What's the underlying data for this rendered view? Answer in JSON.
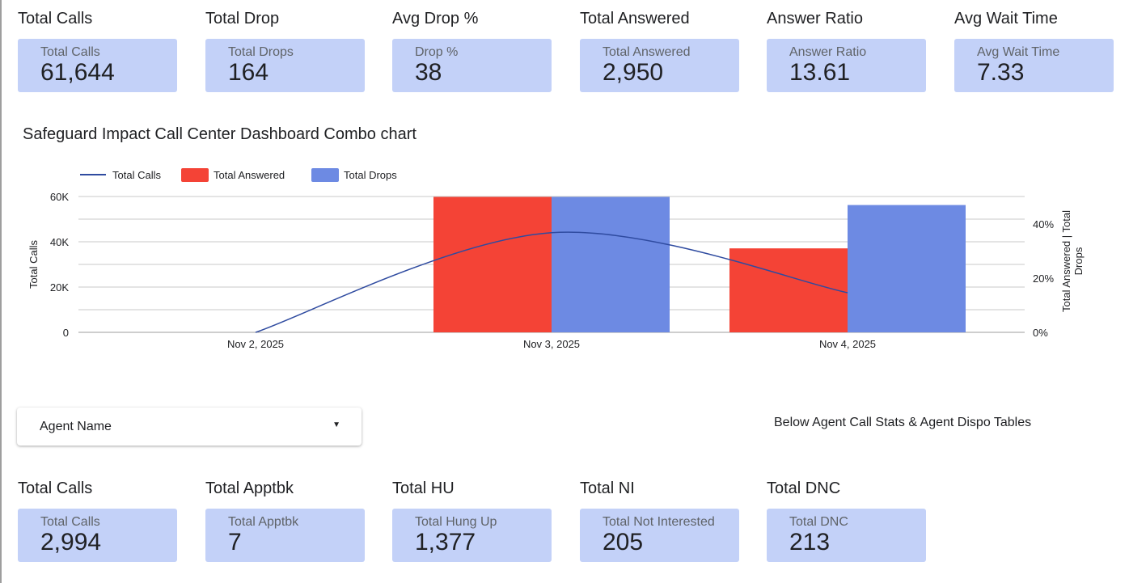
{
  "top_kpis": [
    {
      "title": "Total Calls",
      "label": "Total Calls",
      "value": "61,644"
    },
    {
      "title": "Total Drop",
      "label": "Total Drops",
      "value": "164"
    },
    {
      "title": "Avg Drop %",
      "label": "Drop %",
      "value": "38"
    },
    {
      "title": "Total Answered",
      "label": "Total Answered",
      "value": "2,950"
    },
    {
      "title": "Answer Ratio",
      "label": "Answer Ratio",
      "value": "13.61"
    },
    {
      "title": "Avg Wait Time",
      "label": "Avg Wait Time",
      "value": "7.33"
    }
  ],
  "chart_title": "Safeguard Impact Call Center Dashboard Combo chart",
  "chart_data": {
    "type": "combo",
    "categories": [
      "Nov 2, 2025",
      "Nov 3, 2025",
      "Nov 4, 2025"
    ],
    "series": [
      {
        "name": "Total Calls",
        "type": "line",
        "axis": "left",
        "color": "#2f4ba0",
        "values": [
          0,
          44000,
          17500
        ]
      },
      {
        "name": "Total Answered",
        "type": "bar",
        "axis": "right",
        "color": "#f44336",
        "values": [
          0,
          50,
          31
        ]
      },
      {
        "name": "Total Drops",
        "type": "bar",
        "axis": "right",
        "color": "#6d8ae3",
        "values": [
          0,
          50,
          47
        ]
      }
    ],
    "ylabel": "Total Calls",
    "ylabel_right": "Total Answered | Total Drops",
    "ylim": [
      0,
      60000
    ],
    "yticks": [
      "0",
      "20K",
      "40K",
      "60K"
    ],
    "ylim_right": [
      0,
      50
    ],
    "yticks_right": [
      "0%",
      "20%",
      "40%"
    ],
    "grid": true,
    "legend": "top-left"
  },
  "agent_filter": {
    "label": "Agent Name"
  },
  "below_note": "Below Agent Call Stats & Agent Dispo Tables",
  "agent_kpis": [
    {
      "title": "Total Calls",
      "label": "Total Calls",
      "value": "2,994"
    },
    {
      "title": "Total Apptbk",
      "label": "Total Apptbk",
      "value": "7"
    },
    {
      "title": "Total HU",
      "label": "Total Hung Up",
      "value": "1,377"
    },
    {
      "title": "Total NI",
      "label": "Total Not Interested",
      "value": "205"
    },
    {
      "title": "Total DNC",
      "label": "Total DNC",
      "value": "213"
    }
  ]
}
